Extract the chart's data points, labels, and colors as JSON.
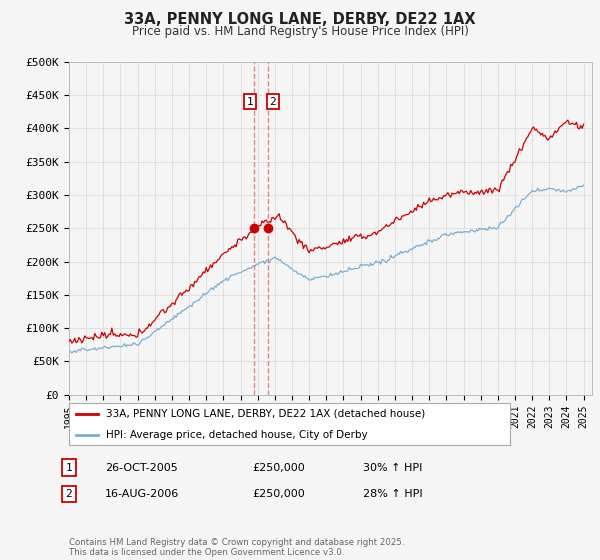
{
  "title": "33A, PENNY LONG LANE, DERBY, DE22 1AX",
  "subtitle": "Price paid vs. HM Land Registry's House Price Index (HPI)",
  "ylabel_ticks": [
    "£0",
    "£50K",
    "£100K",
    "£150K",
    "£200K",
    "£250K",
    "£300K",
    "£350K",
    "£400K",
    "£450K",
    "£500K"
  ],
  "ytick_values": [
    0,
    50000,
    100000,
    150000,
    200000,
    250000,
    300000,
    350000,
    400000,
    450000,
    500000
  ],
  "year_start": 1995,
  "year_end": 2025,
  "legend_line1": "33A, PENNY LONG LANE, DERBY, DE22 1AX (detached house)",
  "legend_line2": "HPI: Average price, detached house, City of Derby",
  "line1_color": "#cc0000",
  "line2_color": "#7aafd4",
  "vline_color": "#e87070",
  "annotation1_label": "1",
  "annotation2_label": "2",
  "annotation1_date": "26-OCT-2005",
  "annotation1_price": "£250,000",
  "annotation1_hpi": "30% ↑ HPI",
  "annotation2_date": "16-AUG-2006",
  "annotation2_price": "£250,000",
  "annotation2_hpi": "28% ↑ HPI",
  "footer": "Contains HM Land Registry data © Crown copyright and database right 2025.\nThis data is licensed under the Open Government Licence v3.0.",
  "background_color": "#f5f5f5",
  "plot_bg_color": "#f5f5f5",
  "grid_color": "#dddddd"
}
